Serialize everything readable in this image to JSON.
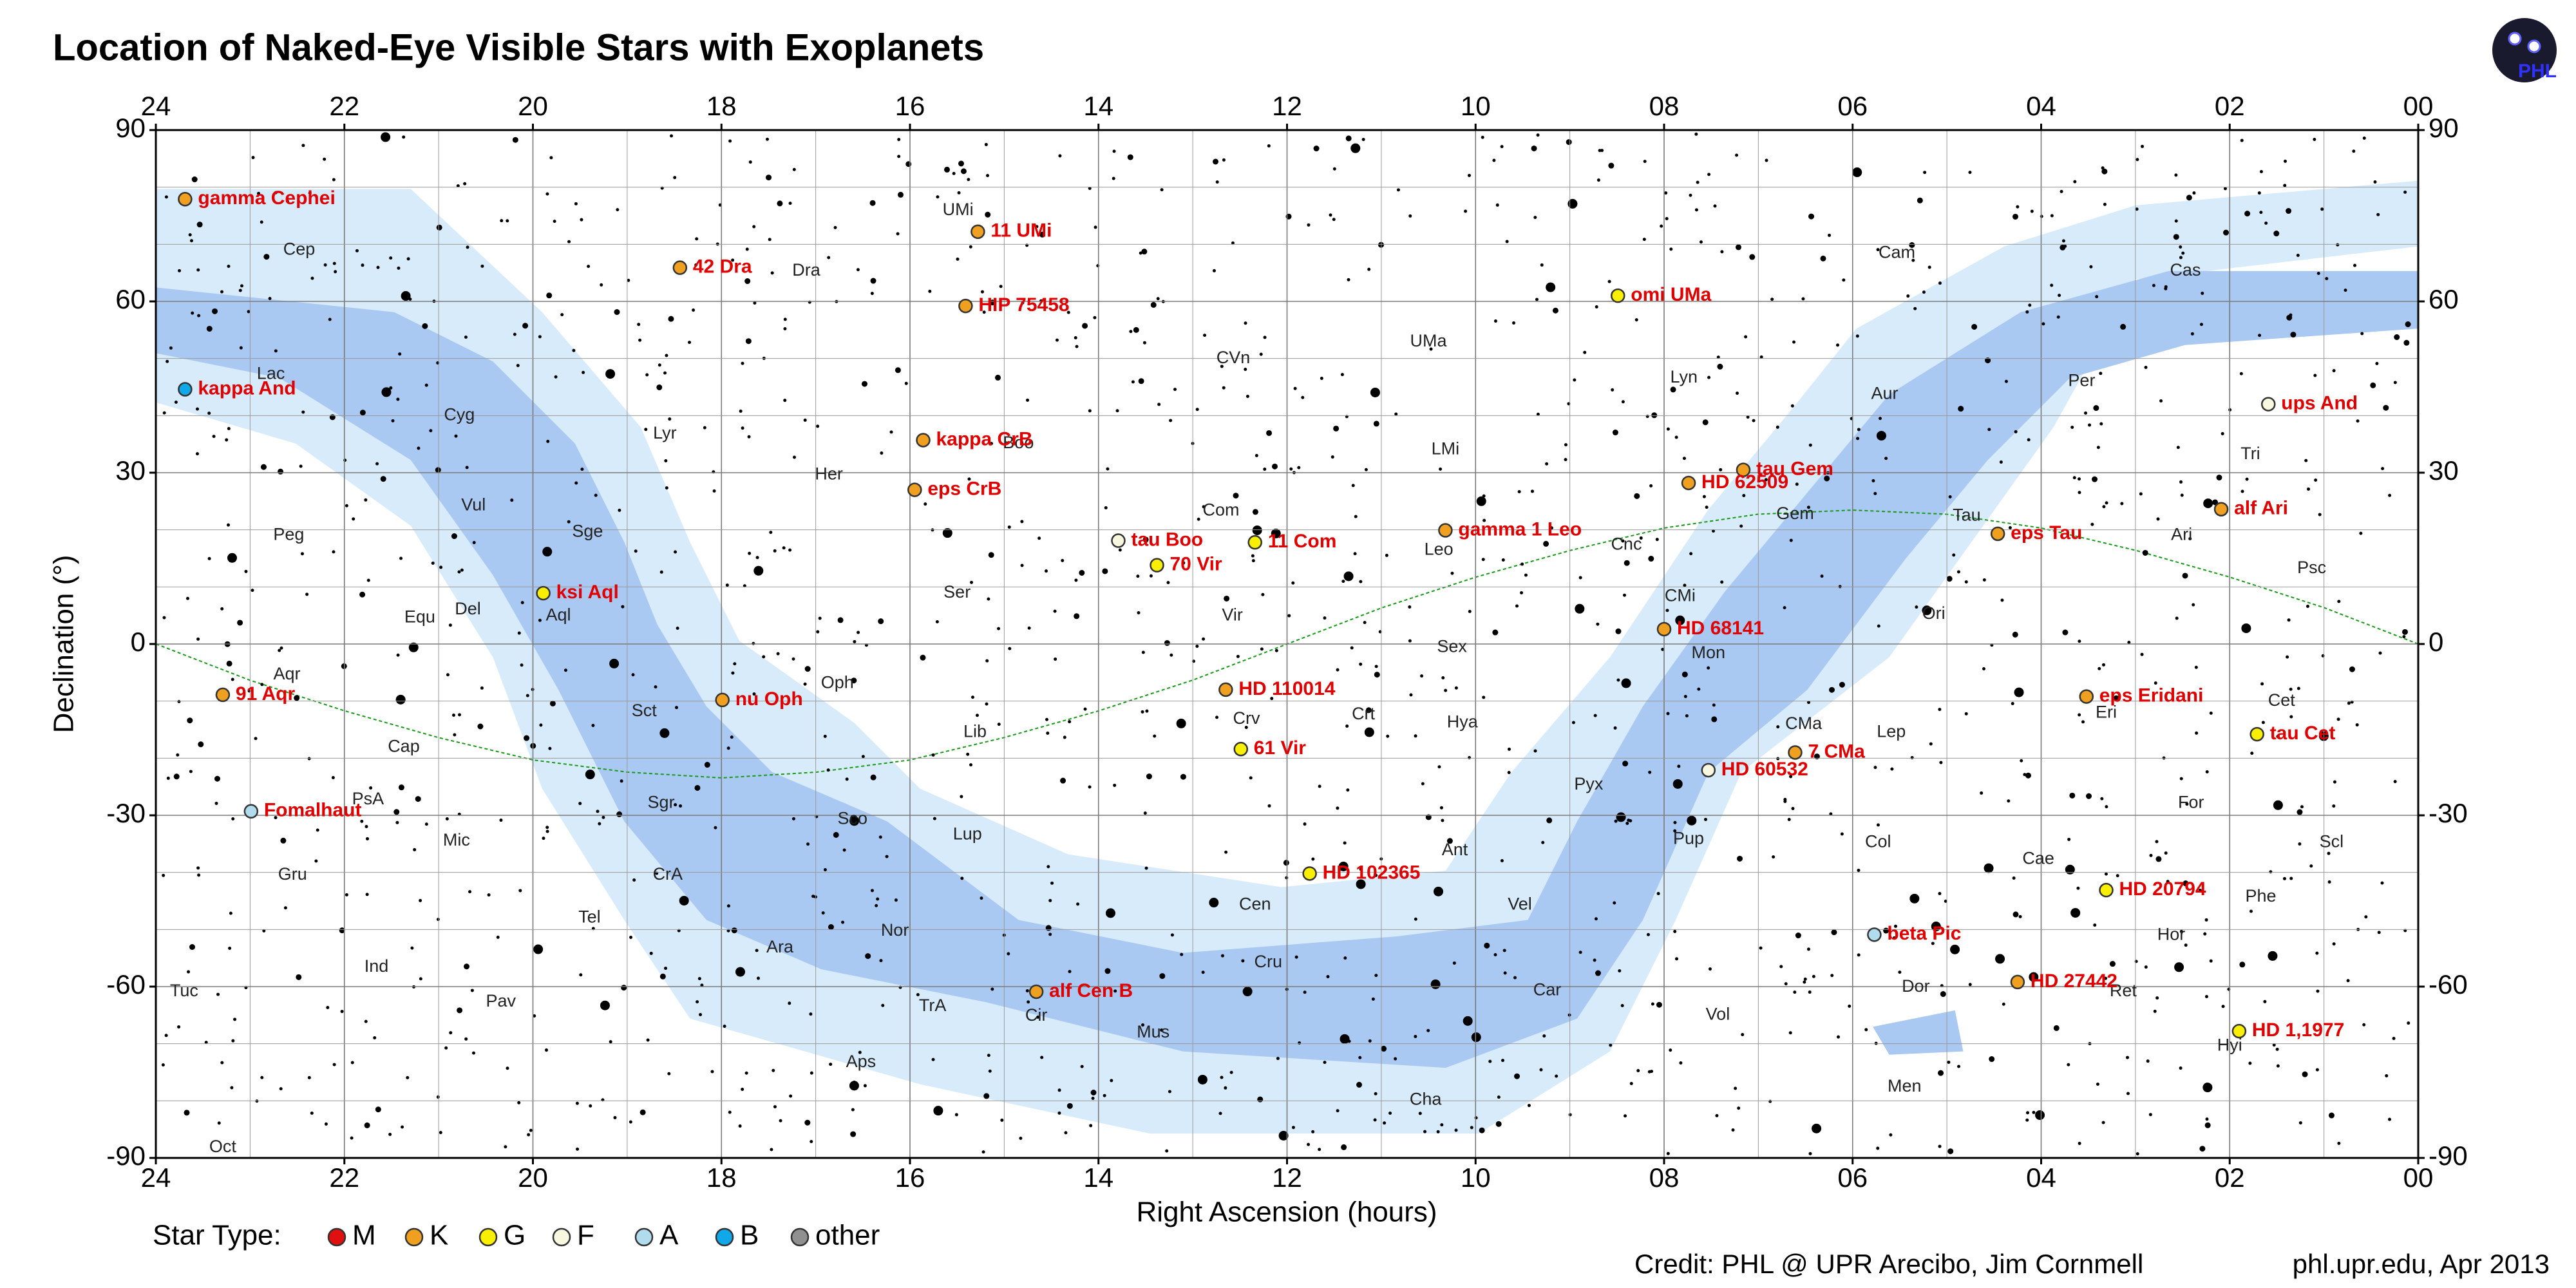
{
  "chart_data": {
    "type": "scatter",
    "title": "Location of Naked-Eye Visible Stars with Exoplanets",
    "xlabel": "Right Ascension (hours)",
    "ylabel": "Declination (°)",
    "xlim": [
      24,
      0
    ],
    "ylim": [
      -90,
      90
    ],
    "xticks": [
      24,
      22,
      20,
      18,
      16,
      14,
      12,
      10,
      {
        "value": 8,
        "label": "08"
      },
      {
        "value": 6,
        "label": "06"
      },
      {
        "value": 4,
        "label": "04"
      },
      {
        "value": 2,
        "label": "02"
      },
      {
        "value": 0,
        "label": "00"
      }
    ],
    "yticks": [
      -90,
      -60,
      -30,
      0,
      30,
      60,
      90
    ],
    "grid": true,
    "legend_title": "Star Type:",
    "series": [
      {
        "name": "M",
        "color": "#e01010",
        "labels": [],
        "x": [],
        "values": []
      },
      {
        "name": "K",
        "color": "#f0a020",
        "labels": [
          "gamma Cephei",
          "11 UMi",
          "42 Dra",
          "HIP 75458",
          "kappa CrB",
          "tau Gem",
          "HD 62509",
          "eps CrB",
          "alf Ari",
          "eps Tau",
          "gamma 1 Leo",
          "HD 68141",
          "HD 110014",
          "nu Oph",
          "91 Aqr",
          "eps Eridani",
          "7 CMa",
          "HD 27442",
          "alf Cen B"
        ],
        "x": [
          23.69,
          15.28,
          18.44,
          15.41,
          15.86,
          7.16,
          7.74,
          15.95,
          2.09,
          4.46,
          10.32,
          8.0,
          12.65,
          17.99,
          23.29,
          3.52,
          6.61,
          4.25,
          14.66
        ],
        "values": [
          77.9,
          72.2,
          65.9,
          59.2,
          35.7,
          30.5,
          28.2,
          27.0,
          23.6,
          19.3,
          19.9,
          2.6,
          -8.0,
          -9.8,
          -8.9,
          -9.2,
          -19.0,
          -59.2,
          -60.9
        ]
      },
      {
        "name": "G",
        "color": "#f8f000",
        "labels": [
          "omi UMa",
          "11 Com",
          "70 Vir",
          "ksi Aql",
          "61 Vir",
          "tau Cet",
          "HD 102365",
          "HD 20794",
          "HD 1,1977"
        ],
        "x": [
          8.49,
          12.34,
          13.38,
          19.89,
          12.49,
          1.71,
          11.76,
          3.31,
          1.9
        ],
        "values": [
          61.0,
          17.8,
          13.8,
          8.9,
          -18.4,
          -15.8,
          -40.2,
          -43.1,
          -67.8
        ]
      },
      {
        "name": "F",
        "color": "#f8f8e0",
        "labels": [
          "ups And",
          "tau Boo",
          "HD 60532"
        ],
        "x": [
          1.59,
          13.79,
          7.53
        ],
        "values": [
          42.0,
          18.1,
          -22.1
        ]
      },
      {
        "name": "A",
        "color": "#b0dcee",
        "labels": [
          "Fomalhaut",
          "beta Pic"
        ],
        "x": [
          22.99,
          5.77
        ],
        "values": [
          -29.3,
          -50.9
        ]
      },
      {
        "name": "B",
        "color": "#10a8e8",
        "labels": [
          "kappa And"
        ],
        "x": [
          23.69
        ],
        "values": [
          44.6
        ]
      },
      {
        "name": "other",
        "color": "#909090",
        "labels": [],
        "x": [],
        "values": []
      }
    ],
    "constellations": {
      "labels": [
        "Cep",
        "UMi",
        "Dra",
        "Cam",
        "Cas",
        "Lac",
        "Cyg",
        "CVn",
        "UMa",
        "Lyn",
        "Per",
        "Aur",
        "Lyr",
        "Her",
        "Boo",
        "LMi",
        "Tri",
        "Vul",
        "Peg",
        "Sge",
        "Com",
        "Gem",
        "Tau",
        "Ari",
        "Cnc",
        "Leo",
        "Psc",
        "Ser",
        "Equ",
        "Del",
        "Aql",
        "CMi",
        "Vir",
        "Ori",
        "Mon",
        "Sex",
        "Aqr",
        "Oph",
        "Sct",
        "Crv",
        "Crt",
        "Hya",
        "Eri",
        "Cet",
        "CMa",
        "Lep",
        "Lib",
        "Cap",
        "Pyx",
        "PsA",
        "For",
        "Sgr",
        "Mic",
        "Sco",
        "Col",
        "Scl",
        "Lup",
        "Ant",
        "Pup",
        "Cae",
        "Gru",
        "CrA",
        "Vel",
        "Cen",
        "Phe",
        "Tel",
        "Nor",
        "Hor",
        "Ara",
        "Ind",
        "Cru",
        "Dor",
        "Ret",
        "Tuc",
        "Car",
        "Pav",
        "TrA",
        "Cir",
        "Vol",
        "Mus",
        "Hyi",
        "Aps",
        "Men",
        "Cha",
        "Oct"
      ],
      "x": [
        22.48,
        15.49,
        17.1,
        5.53,
        2.47,
        22.78,
        20.78,
        12.57,
        10.5,
        7.79,
        3.57,
        5.66,
        18.6,
        16.86,
        14.85,
        10.32,
        1.78,
        20.63,
        22.59,
        19.42,
        12.7,
        6.61,
        4.79,
        2.51,
        8.4,
        10.39,
        1.13,
        15.5,
        21.2,
        20.69,
        19.73,
        7.83,
        12.58,
        5.14,
        7.53,
        10.25,
        22.61,
        16.77,
        18.82,
        12.43,
        11.19,
        10.14,
        3.31,
        1.45,
        6.52,
        5.59,
        15.31,
        21.37,
        8.8,
        21.75,
        2.41,
        18.64,
        20.81,
        16.61,
        5.73,
        0.92,
        15.39,
        10.22,
        7.74,
        4.03,
        22.55,
        18.57,
        9.53,
        12.34,
        1.67,
        19.4,
        16.16,
        2.62,
        17.38,
        21.66,
        12.2,
        5.33,
        3.13,
        23.7,
        9.24,
        20.34,
        15.76,
        14.66,
        7.43,
        13.42,
        2.0,
        16.52,
        5.45,
        10.53,
        23.29
      ],
      "y": [
        69.0,
        75.9,
        65.3,
        68.4,
        65.3,
        47.2,
        40.0,
        50.0,
        52.9,
        46.6,
        46.0,
        43.7,
        36.8,
        29.6,
        35.1,
        34.0,
        33.2,
        24.2,
        19.0,
        19.6,
        23.3,
        22.7,
        22.4,
        19.0,
        17.3,
        16.4,
        13.2,
        8.9,
        4.6,
        6.0,
        4.9,
        8.3,
        4.9,
        5.2,
        -1.7,
        -0.6,
        -5.4,
        -6.9,
        -11.8,
        -13.2,
        -12.4,
        -13.8,
        -12.1,
        -10.0,
        -14.1,
        -15.5,
        -15.5,
        -18.1,
        -24.7,
        -27.3,
        -27.9,
        -27.9,
        -34.5,
        -30.7,
        -34.8,
        -34.8,
        -33.4,
        -36.2,
        -34.2,
        -37.7,
        -40.5,
        -40.5,
        -45.7,
        -45.7,
        -44.3,
        -48.0,
        -50.3,
        -51.0,
        -53.2,
        -56.6,
        -55.8,
        -60.1,
        -60.9,
        -60.9,
        -60.7,
        -62.7,
        -63.5,
        -65.2,
        -65.0,
        -68.1,
        -70.4,
        -73.3,
        -77.6,
        -79.9,
        -88.2
      ]
    },
    "logo": "PHL",
    "credit": "Credit: PHL @ UPR Arecibo, Jim Cornmell",
    "source": "phl.upr.edu, Apr 2013"
  }
}
